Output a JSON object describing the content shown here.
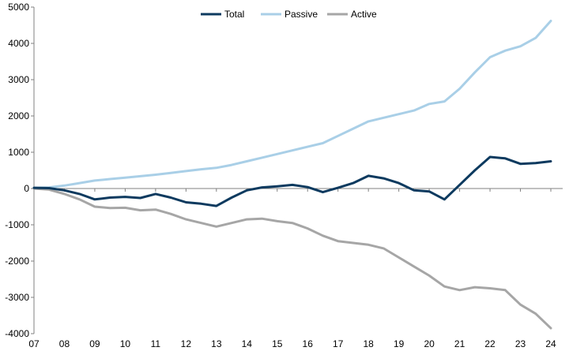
{
  "chart_data": {
    "type": "line",
    "title": "",
    "xlabel": "",
    "ylabel": "",
    "ylim": [
      -4000,
      5000
    ],
    "yticks": [
      -4000,
      -3000,
      -2000,
      -1000,
      0,
      1000,
      2000,
      3000,
      4000,
      5000
    ],
    "xlim": [
      2007,
      2024.5
    ],
    "xticks": [
      {
        "value": 2007,
        "label": "07"
      },
      {
        "value": 2008,
        "label": "08"
      },
      {
        "value": 2009,
        "label": "09"
      },
      {
        "value": 2010,
        "label": "10"
      },
      {
        "value": 2011,
        "label": "11"
      },
      {
        "value": 2012,
        "label": "12"
      },
      {
        "value": 2013,
        "label": "13"
      },
      {
        "value": 2014,
        "label": "14"
      },
      {
        "value": 2015,
        "label": "15"
      },
      {
        "value": 2016,
        "label": "16"
      },
      {
        "value": 2017,
        "label": "17"
      },
      {
        "value": 2018,
        "label": "18"
      },
      {
        "value": 2019,
        "label": "19"
      },
      {
        "value": 2020,
        "label": "20"
      },
      {
        "value": 2021,
        "label": "21"
      },
      {
        "value": 2022,
        "label": "22"
      },
      {
        "value": 2023,
        "label": "23"
      },
      {
        "value": 2024,
        "label": "24"
      }
    ],
    "grid": false,
    "legend_position": "top-center",
    "series": [
      {
        "name": "Total",
        "color": "#0d3a5f",
        "points": [
          [
            2007.0,
            20
          ],
          [
            2007.5,
            10
          ],
          [
            2008.0,
            -50
          ],
          [
            2008.5,
            -150
          ],
          [
            2009.0,
            -300
          ],
          [
            2009.5,
            -250
          ],
          [
            2010.0,
            -230
          ],
          [
            2010.5,
            -260
          ],
          [
            2011.0,
            -150
          ],
          [
            2011.5,
            -250
          ],
          [
            2012.0,
            -380
          ],
          [
            2012.5,
            -420
          ],
          [
            2013.0,
            -480
          ],
          [
            2013.5,
            -250
          ],
          [
            2014.0,
            -50
          ],
          [
            2014.5,
            30
          ],
          [
            2015.0,
            60
          ],
          [
            2015.5,
            100
          ],
          [
            2016.0,
            40
          ],
          [
            2016.5,
            -100
          ],
          [
            2017.0,
            20
          ],
          [
            2017.5,
            150
          ],
          [
            2018.0,
            350
          ],
          [
            2018.5,
            280
          ],
          [
            2019.0,
            150
          ],
          [
            2019.5,
            -50
          ],
          [
            2020.0,
            -80
          ],
          [
            2020.5,
            -300
          ],
          [
            2021.0,
            100
          ],
          [
            2021.5,
            500
          ],
          [
            2022.0,
            870
          ],
          [
            2022.5,
            830
          ],
          [
            2023.0,
            680
          ],
          [
            2023.5,
            700
          ],
          [
            2024.0,
            750
          ]
        ]
      },
      {
        "name": "Passive",
        "color": "#a9cfe7",
        "points": [
          [
            2007.0,
            20
          ],
          [
            2007.5,
            30
          ],
          [
            2008.0,
            80
          ],
          [
            2008.5,
            150
          ],
          [
            2009.0,
            220
          ],
          [
            2009.5,
            260
          ],
          [
            2010.0,
            300
          ],
          [
            2010.5,
            340
          ],
          [
            2011.0,
            380
          ],
          [
            2011.5,
            430
          ],
          [
            2012.0,
            480
          ],
          [
            2012.5,
            530
          ],
          [
            2013.0,
            570
          ],
          [
            2013.5,
            650
          ],
          [
            2014.0,
            750
          ],
          [
            2014.5,
            850
          ],
          [
            2015.0,
            950
          ],
          [
            2015.5,
            1050
          ],
          [
            2016.0,
            1150
          ],
          [
            2016.5,
            1250
          ],
          [
            2017.0,
            1450
          ],
          [
            2017.5,
            1650
          ],
          [
            2018.0,
            1850
          ],
          [
            2018.5,
            1950
          ],
          [
            2019.0,
            2050
          ],
          [
            2019.5,
            2150
          ],
          [
            2020.0,
            2330
          ],
          [
            2020.5,
            2400
          ],
          [
            2021.0,
            2750
          ],
          [
            2021.5,
            3200
          ],
          [
            2022.0,
            3620
          ],
          [
            2022.5,
            3800
          ],
          [
            2023.0,
            3920
          ],
          [
            2023.5,
            4150
          ],
          [
            2024.0,
            4620
          ]
        ]
      },
      {
        "name": "Active",
        "color": "#a6a6a6",
        "points": [
          [
            2007.0,
            0
          ],
          [
            2007.5,
            -30
          ],
          [
            2008.0,
            -150
          ],
          [
            2008.5,
            -300
          ],
          [
            2009.0,
            -500
          ],
          [
            2009.5,
            -540
          ],
          [
            2010.0,
            -530
          ],
          [
            2010.5,
            -600
          ],
          [
            2011.0,
            -580
          ],
          [
            2011.5,
            -700
          ],
          [
            2012.0,
            -850
          ],
          [
            2012.5,
            -950
          ],
          [
            2013.0,
            -1050
          ],
          [
            2013.5,
            -950
          ],
          [
            2014.0,
            -850
          ],
          [
            2014.5,
            -830
          ],
          [
            2015.0,
            -900
          ],
          [
            2015.5,
            -950
          ],
          [
            2016.0,
            -1100
          ],
          [
            2016.5,
            -1300
          ],
          [
            2017.0,
            -1450
          ],
          [
            2017.5,
            -1500
          ],
          [
            2018.0,
            -1550
          ],
          [
            2018.5,
            -1650
          ],
          [
            2019.0,
            -1900
          ],
          [
            2019.5,
            -2150
          ],
          [
            2020.0,
            -2400
          ],
          [
            2020.5,
            -2700
          ],
          [
            2021.0,
            -2800
          ],
          [
            2021.5,
            -2720
          ],
          [
            2022.0,
            -2750
          ],
          [
            2022.5,
            -2800
          ],
          [
            2023.0,
            -3200
          ],
          [
            2023.5,
            -3450
          ],
          [
            2024.0,
            -3850
          ]
        ]
      }
    ]
  }
}
